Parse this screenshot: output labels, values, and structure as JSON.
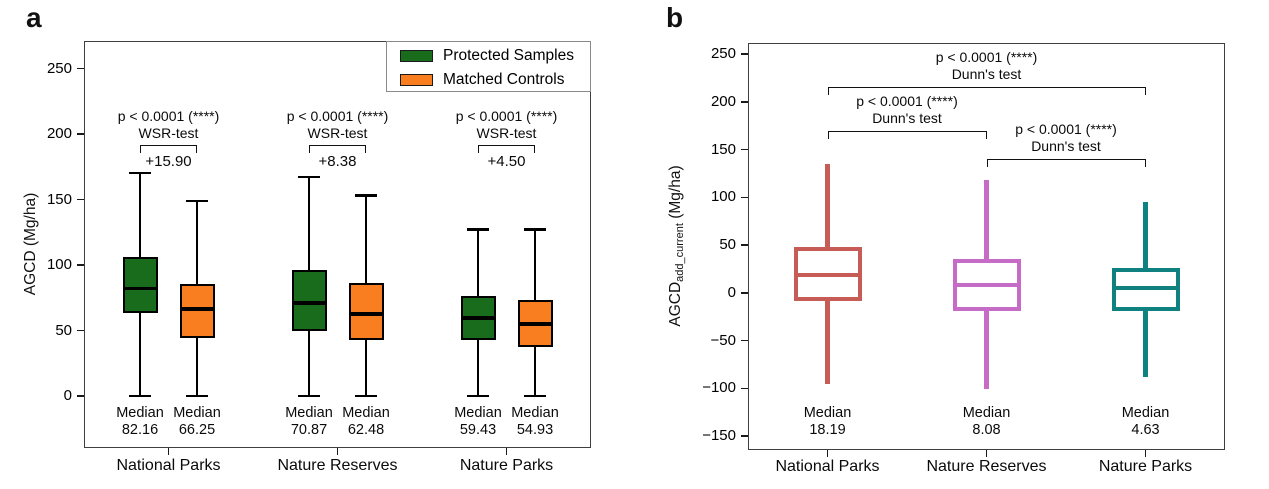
{
  "figure": {
    "panels": [
      {
        "letter": "a",
        "ylabel": {
          "prefix": "AGCD",
          "sub": "",
          "suffix": " (Mg/ha)"
        }
      },
      {
        "letter": "b",
        "ylabel": {
          "prefix": "AGCD",
          "sub": "add_current",
          "suffix": " (Mg/ha)"
        }
      }
    ],
    "legend": {
      "items": [
        {
          "label": "Protected Samples",
          "color": "#186C1C"
        },
        {
          "label": "Matched Controls",
          "color": "#F87E20"
        }
      ]
    }
  },
  "chart_data": [
    {
      "type": "boxplot",
      "panel": "a",
      "title": "",
      "xlabel": "",
      "ylabel": "AGCD (Mg/ha)",
      "categories": [
        "National Parks",
        "Nature Reserves",
        "Nature Parks"
      ],
      "ylim": [
        -46,
        272
      ],
      "grid": false,
      "legend_position": "top-right",
      "yticks": [
        {
          "v": 0,
          "label": "0"
        },
        {
          "v": 50,
          "label": "50"
        },
        {
          "v": 100,
          "label": "100"
        },
        {
          "v": 150,
          "label": "150"
        },
        {
          "v": 200,
          "label": "200"
        },
        {
          "v": 250,
          "label": "250"
        }
      ],
      "median_word": "Median",
      "series": [
        {
          "name": "Protected Samples",
          "color": "#186C1C",
          "boxes": [
            {
              "whislo": 0,
              "q1": 63,
              "med": 82.16,
              "q3": 106,
              "whishi": 170,
              "median_label": "82.16"
            },
            {
              "whislo": 0,
              "q1": 49.5,
              "med": 70.87,
              "q3": 96,
              "whishi": 167,
              "median_label": "70.87"
            },
            {
              "whislo": 0,
              "q1": 43,
              "med": 59.43,
              "q3": 76,
              "whishi": 127,
              "median_label": "59.43"
            }
          ]
        },
        {
          "name": "Matched Controls",
          "color": "#F87E20",
          "boxes": [
            {
              "whislo": 0,
              "q1": 44,
              "med": 66.25,
              "q3": 85.5,
              "whishi": 149,
              "median_label": "66.25"
            },
            {
              "whislo": 0,
              "q1": 43,
              "med": 62.48,
              "q3": 86,
              "whishi": 153,
              "median_label": "62.48"
            },
            {
              "whislo": 0,
              "q1": 37.5,
              "med": 54.93,
              "q3": 73,
              "whishi": 127,
              "median_label": "54.93"
            }
          ]
        }
      ],
      "annotations": [
        {
          "p": "p < 0.0001 (****)",
          "test": "WSR-test",
          "diff": "+15.90"
        },
        {
          "p": "p < 0.0001 (****)",
          "test": "WSR-test",
          "diff": "+8.38"
        },
        {
          "p": "p < 0.0001 (****)",
          "test": "WSR-test",
          "diff": "+4.50"
        }
      ]
    },
    {
      "type": "boxplot",
      "panel": "b",
      "title": "",
      "xlabel": "",
      "ylabel": "AGCD_add_current (Mg/ha)",
      "categories": [
        "National Parks",
        "Nature Reserves",
        "Nature Parks"
      ],
      "ylim": [
        -165,
        262
      ],
      "grid": false,
      "yticks": [
        {
          "v": -150,
          "label": "−150"
        },
        {
          "v": -100,
          "label": "−100"
        },
        {
          "v": -50,
          "label": "−50"
        },
        {
          "v": 0,
          "label": "0"
        },
        {
          "v": 50,
          "label": "50"
        },
        {
          "v": 100,
          "label": "100"
        },
        {
          "v": 150,
          "label": "150"
        },
        {
          "v": 200,
          "label": "200"
        },
        {
          "v": 250,
          "label": "250"
        }
      ],
      "median_word": "Median",
      "boxes": [
        {
          "category": "National Parks",
          "color": "#C75B55",
          "whislo": -96,
          "q1": -9,
          "med": 18.19,
          "q3": 48,
          "whishi": 135,
          "median_label": "18.19"
        },
        {
          "category": "Nature Reserves",
          "color": "#C66BC6",
          "whislo": -101,
          "q1": -19,
          "med": 8.08,
          "q3": 35,
          "whishi": 118,
          "median_label": "8.08"
        },
        {
          "category": "Nature Parks",
          "color": "#0F8181",
          "whislo": -88,
          "q1": -19,
          "med": 4.63,
          "q3": 26,
          "whishi": 95,
          "median_label": "4.63"
        }
      ],
      "comparisons": [
        {
          "groups": [
            0,
            2
          ],
          "p": "p < 0.0001 (****)",
          "test": "Dunn's test"
        },
        {
          "groups": [
            0,
            1
          ],
          "p": "p < 0.0001 (****)",
          "test": "Dunn's test"
        },
        {
          "groups": [
            1,
            2
          ],
          "p": "p < 0.0001 (****)",
          "test": "Dunn's test"
        }
      ]
    }
  ]
}
